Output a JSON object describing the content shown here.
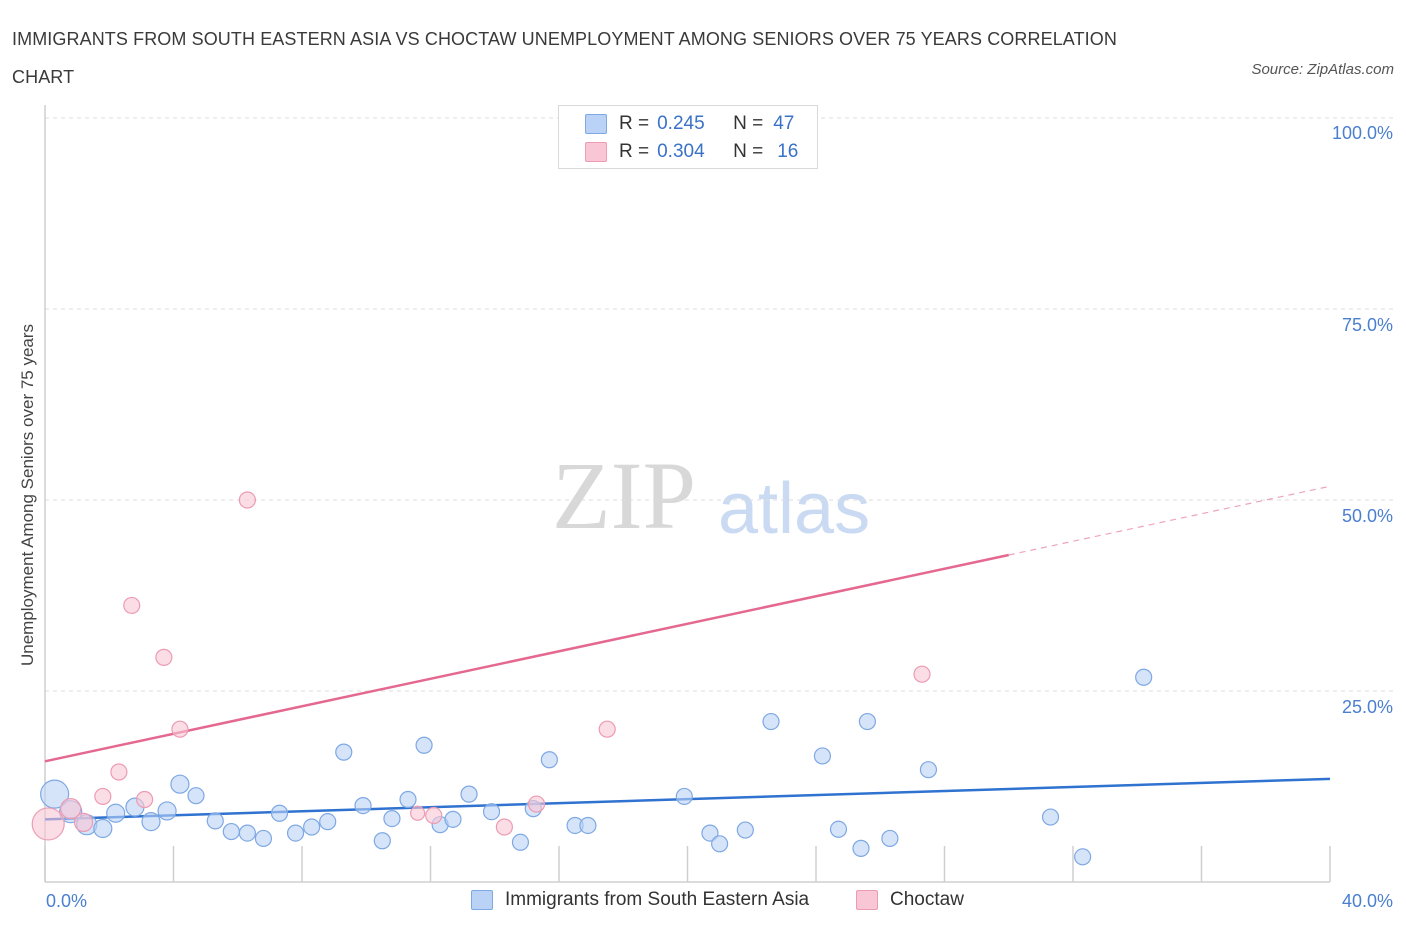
{
  "title": "IMMIGRANTS FROM SOUTH EASTERN ASIA VS CHOCTAW UNEMPLOYMENT AMONG SENIORS OVER 75 YEARS CORRELATION CHART",
  "source": "Source: ZipAtlas.com",
  "watermark": {
    "zip": "ZIP",
    "atlas": "atlas"
  },
  "legend_top": {
    "rows": [
      {
        "r_label": "R =",
        "r_value": "0.245",
        "n_label": "N =",
        "n_value": "47"
      },
      {
        "r_label": "R =",
        "r_value": "0.304",
        "n_label": "N =",
        "n_value": "16"
      }
    ]
  },
  "legend_bottom": {
    "items": [
      {
        "label": "Immigrants from South Eastern Asia"
      },
      {
        "label": "Choctaw"
      }
    ]
  },
  "colors": {
    "blue_fill": "#b9d2f5",
    "blue_stroke": "#7ea8e3",
    "blue_line": "#2f72d0",
    "pink_fill": "#f8c6d5",
    "pink_stroke": "#ec9bb3",
    "pink_line": "#e4688f",
    "tick_text": "#4a7fd0",
    "grid": "#dddddd"
  },
  "chart_data": {
    "type": "scatter",
    "title": "IMMIGRANTS FROM SOUTH EASTERN ASIA VS CHOCTAW UNEMPLOYMENT AMONG SENIORS OVER 75 YEARS CORRELATION CHART",
    "xlabel": "",
    "ylabel": "Unemployment Among Seniors over 75 years",
    "xlim": [
      0,
      40
    ],
    "ylim": [
      0,
      100
    ],
    "x_tick_labels": [
      "0.0%",
      "40.0%"
    ],
    "y_tick_labels": [
      {
        "value": 100,
        "label": "100.0%"
      },
      {
        "value": 75,
        "label": "75.0%"
      },
      {
        "value": 50,
        "label": "50.0%"
      },
      {
        "value": 25,
        "label": "25.0%"
      }
    ],
    "grid": "horizontal dashed",
    "legend_position": "top-center and bottom",
    "series": [
      {
        "name": "Immigrants from South Eastern Asia",
        "color": "#b9d2f5",
        "trend": {
          "x": [
            0,
            40
          ],
          "y": [
            8.2,
            13.5
          ],
          "style": "solid"
        },
        "points": [
          {
            "x": 0.3,
            "y": 11.5,
            "s": 14
          },
          {
            "x": 0.8,
            "y": 9.2,
            "s": 11
          },
          {
            "x": 1.3,
            "y": 7.5,
            "s": 10
          },
          {
            "x": 1.8,
            "y": 7.0,
            "s": 9
          },
          {
            "x": 2.2,
            "y": 9.0,
            "s": 9
          },
          {
            "x": 2.8,
            "y": 9.8,
            "s": 9
          },
          {
            "x": 3.3,
            "y": 7.9,
            "s": 9
          },
          {
            "x": 3.8,
            "y": 9.3,
            "s": 9
          },
          {
            "x": 4.2,
            "y": 12.8,
            "s": 9
          },
          {
            "x": 4.7,
            "y": 11.3,
            "s": 8
          },
          {
            "x": 5.3,
            "y": 8.0,
            "s": 8
          },
          {
            "x": 5.8,
            "y": 6.6,
            "s": 8
          },
          {
            "x": 6.3,
            "y": 6.4,
            "s": 8
          },
          {
            "x": 6.8,
            "y": 5.7,
            "s": 8
          },
          {
            "x": 7.3,
            "y": 9.0,
            "s": 8
          },
          {
            "x": 7.8,
            "y": 6.4,
            "s": 8
          },
          {
            "x": 8.3,
            "y": 7.2,
            "s": 8
          },
          {
            "x": 8.8,
            "y": 7.9,
            "s": 8
          },
          {
            "x": 9.3,
            "y": 17.0,
            "s": 8
          },
          {
            "x": 9.9,
            "y": 10.0,
            "s": 8
          },
          {
            "x": 10.5,
            "y": 5.4,
            "s": 8
          },
          {
            "x": 10.8,
            "y": 8.3,
            "s": 8
          },
          {
            "x": 11.3,
            "y": 10.8,
            "s": 8
          },
          {
            "x": 11.8,
            "y": 17.9,
            "s": 8
          },
          {
            "x": 12.3,
            "y": 7.5,
            "s": 8
          },
          {
            "x": 12.7,
            "y": 8.2,
            "s": 8
          },
          {
            "x": 13.2,
            "y": 11.5,
            "s": 8
          },
          {
            "x": 13.9,
            "y": 9.2,
            "s": 8
          },
          {
            "x": 14.8,
            "y": 5.2,
            "s": 8
          },
          {
            "x": 15.2,
            "y": 9.6,
            "s": 8
          },
          {
            "x": 15.7,
            "y": 16.0,
            "s": 8
          },
          {
            "x": 16.5,
            "y": 7.4,
            "s": 8
          },
          {
            "x": 16.9,
            "y": 7.4,
            "s": 8
          },
          {
            "x": 19.9,
            "y": 11.2,
            "s": 8
          },
          {
            "x": 20.7,
            "y": 6.4,
            "s": 8
          },
          {
            "x": 21.0,
            "y": 5.0,
            "s": 8
          },
          {
            "x": 21.8,
            "y": 6.8,
            "s": 8
          },
          {
            "x": 22.6,
            "y": 21.0,
            "s": 8
          },
          {
            "x": 24.2,
            "y": 16.5,
            "s": 8
          },
          {
            "x": 24.7,
            "y": 6.9,
            "s": 8
          },
          {
            "x": 25.4,
            "y": 4.4,
            "s": 8
          },
          {
            "x": 25.6,
            "y": 21.0,
            "s": 8
          },
          {
            "x": 26.3,
            "y": 5.7,
            "s": 8
          },
          {
            "x": 27.5,
            "y": 14.7,
            "s": 8
          },
          {
            "x": 31.3,
            "y": 8.5,
            "s": 8
          },
          {
            "x": 32.3,
            "y": 3.3,
            "s": 8
          },
          {
            "x": 34.2,
            "y": 26.8,
            "s": 8
          }
        ]
      },
      {
        "name": "Choctaw",
        "color": "#f8c6d5",
        "trend": {
          "x": [
            0,
            30
          ],
          "y": [
            15.8,
            42.8
          ],
          "dashed_extension": {
            "x": [
              30,
              40
            ],
            "y": [
              42.8,
              51.8
            ]
          },
          "style": "solid"
        },
        "points": [
          {
            "x": 0.1,
            "y": 7.6,
            "s": 16
          },
          {
            "x": 0.8,
            "y": 9.6,
            "s": 10
          },
          {
            "x": 1.2,
            "y": 7.8,
            "s": 9
          },
          {
            "x": 1.8,
            "y": 11.2,
            "s": 8
          },
          {
            "x": 2.3,
            "y": 14.4,
            "s": 8
          },
          {
            "x": 2.7,
            "y": 36.2,
            "s": 8
          },
          {
            "x": 3.1,
            "y": 10.8,
            "s": 8
          },
          {
            "x": 3.7,
            "y": 29.4,
            "s": 8
          },
          {
            "x": 4.2,
            "y": 20.0,
            "s": 8
          },
          {
            "x": 6.3,
            "y": 50.0,
            "s": 8
          },
          {
            "x": 12.1,
            "y": 8.7,
            "s": 8
          },
          {
            "x": 14.3,
            "y": 7.2,
            "s": 8
          },
          {
            "x": 15.3,
            "y": 10.2,
            "s": 8
          },
          {
            "x": 17.5,
            "y": 20.0,
            "s": 8
          },
          {
            "x": 27.3,
            "y": 27.2,
            "s": 8
          },
          {
            "x": 11.6,
            "y": 9.0,
            "s": 7
          }
        ]
      }
    ]
  }
}
